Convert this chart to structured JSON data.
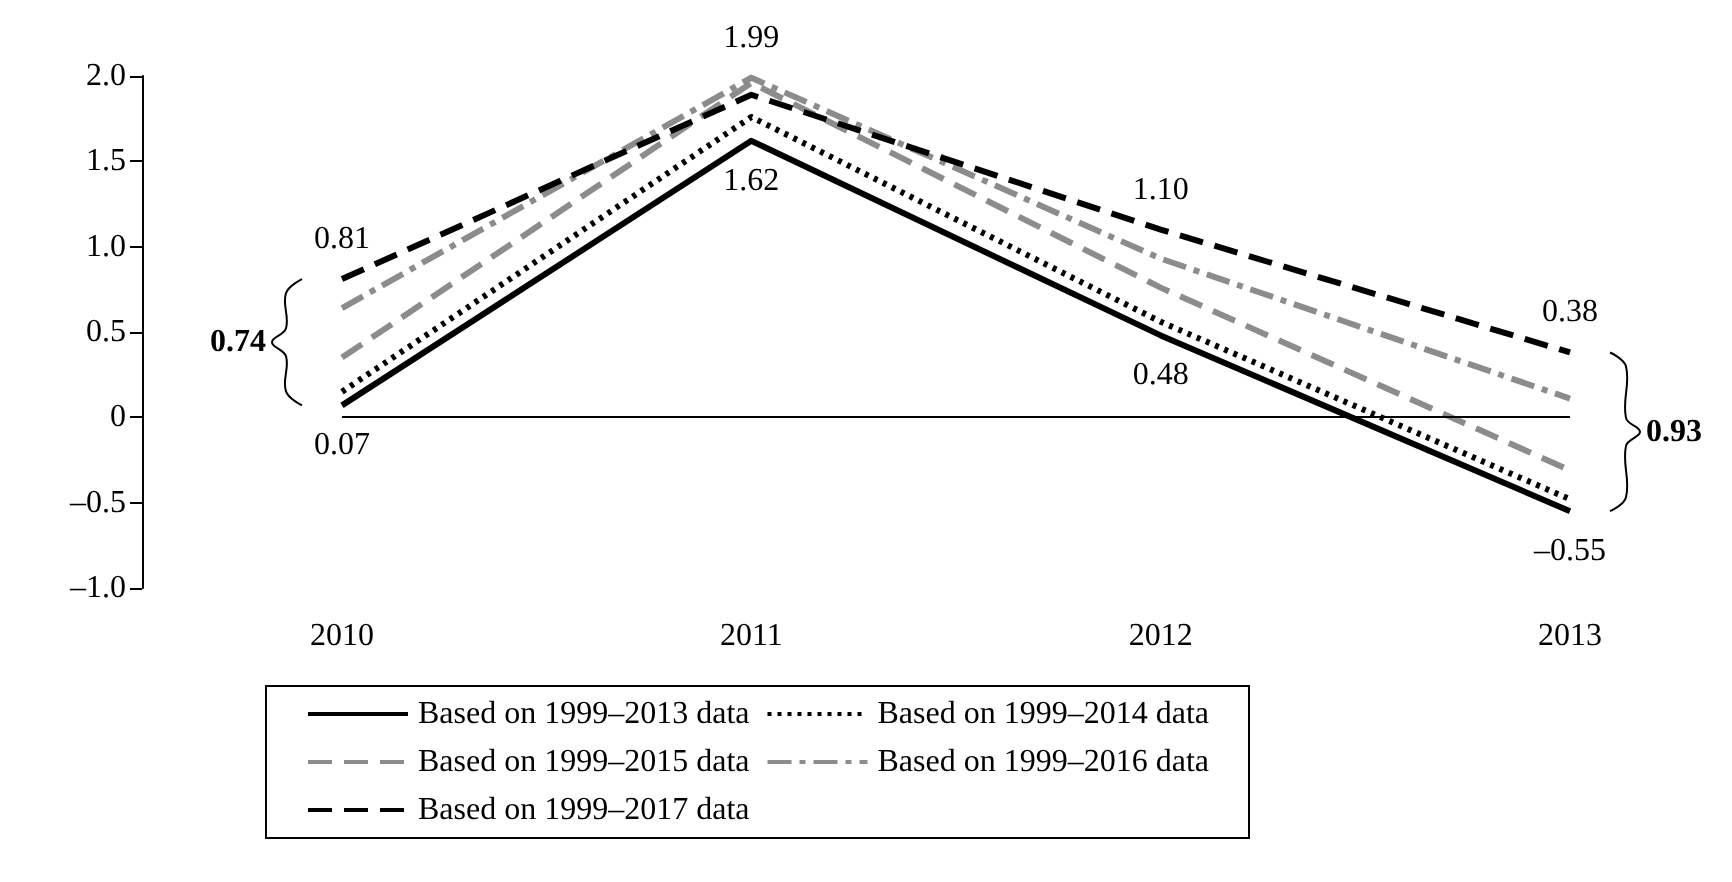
{
  "chart_data": {
    "type": "line",
    "categories": [
      "2010",
      "2011",
      "2012",
      "2013"
    ],
    "series": [
      {
        "name": "Based on 1999–2013 data",
        "color": "#000000",
        "line_style": "solid",
        "values": [
          0.07,
          1.62,
          0.48,
          -0.55
        ],
        "value_labels": [
          "0.07",
          "1.62",
          "0.48",
          "–0.55"
        ]
      },
      {
        "name": "Based on 1999–2014 data",
        "color": "#000000",
        "line_style": "dotted",
        "values": [
          0.15,
          1.76,
          0.56,
          -0.48
        ]
      },
      {
        "name": "Based on 1999–2015 data",
        "color": "#8c8c8c",
        "line_style": "dashed",
        "values": [
          0.35,
          1.96,
          0.76,
          -0.31
        ]
      },
      {
        "name": "Based on 1999–2016 data",
        "color": "#8c8c8c",
        "line_style": "dashdot",
        "values": [
          0.64,
          1.99,
          0.93,
          0.11
        ],
        "value_labels": [
          null,
          "1.99",
          null,
          null
        ]
      },
      {
        "name": "Based on 1999–2017 data",
        "color": "#000000",
        "line_style": "dashed",
        "values": [
          0.81,
          1.89,
          1.1,
          0.38
        ],
        "value_labels": [
          "0.81",
          null,
          "1.10",
          "0.38"
        ]
      }
    ],
    "ylim": [
      -1,
      2
    ],
    "yticks": [
      {
        "value": -1,
        "label": "–1.0"
      },
      {
        "value": -0.5,
        "label": "–0.5"
      },
      0,
      {
        "value": 0.5,
        "label": "0.5"
      },
      {
        "value": 1,
        "label": "1.0"
      },
      {
        "value": 1.5,
        "label": "1.5"
      },
      {
        "value": 2,
        "label": "2.0"
      }
    ],
    "ref_lines": [
      {
        "axis": "y",
        "value": 0,
        "color": "#000000"
      }
    ],
    "annotations": [
      "0.74",
      "0.93"
    ],
    "legend": "bottom",
    "marker": "none",
    "grid": false
  }
}
